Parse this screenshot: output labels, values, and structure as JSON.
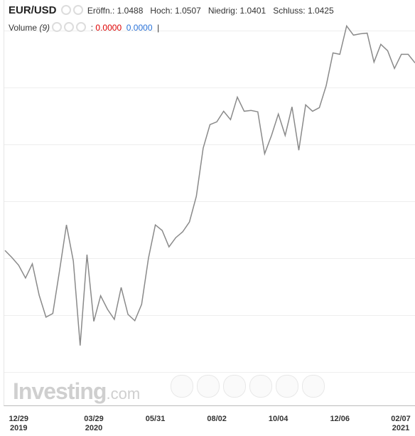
{
  "header": {
    "symbol": "EUR/USD",
    "open_label": "Eröffn.:",
    "open": "1.0488",
    "high_label": "Hoch:",
    "high": "1.0507",
    "low_label": "Niedrig:",
    "low": "1.0401",
    "close_label": "Schluss:",
    "close": "1.0425",
    "volume_label": "Volume",
    "volume_period": "(9)",
    "volume_sep": ":",
    "volume_value_1": "0.0000",
    "volume_value_2": "0.0000",
    "volume_cursor": "|"
  },
  "logo": {
    "name": "Investing",
    "suffix": ".com"
  },
  "chart_data": {
    "type": "line",
    "categories": [
      null,
      null,
      "12/29",
      null,
      null,
      null,
      null,
      null,
      null,
      null,
      null,
      null,
      null,
      "03/29",
      null,
      null,
      null,
      null,
      null,
      null,
      null,
      null,
      "05/31",
      null,
      null,
      null,
      null,
      null,
      null,
      null,
      null,
      "08/02",
      null,
      null,
      null,
      null,
      null,
      null,
      null,
      null,
      "10/04",
      null,
      null,
      null,
      null,
      null,
      null,
      null,
      null,
      "12/06",
      null,
      null,
      null,
      null,
      null,
      null,
      null,
      null,
      "02/07",
      null,
      null
    ],
    "years": [
      null,
      null,
      "2019",
      null,
      null,
      null,
      null,
      null,
      null,
      null,
      null,
      null,
      null,
      "2020",
      null,
      null,
      null,
      null,
      null,
      null,
      null,
      null,
      null,
      null,
      null,
      null,
      null,
      null,
      null,
      null,
      null,
      null,
      null,
      null,
      null,
      null,
      null,
      null,
      null,
      null,
      null,
      null,
      null,
      null,
      null,
      null,
      null,
      null,
      null,
      null,
      null,
      null,
      null,
      null,
      null,
      null,
      null,
      null,
      "2021",
      null,
      null
    ],
    "values": [
      1.1176,
      1.1141,
      1.1102,
      1.1038,
      1.1109,
      1.0952,
      1.0842,
      1.086,
      1.1077,
      1.1304,
      1.1123,
      1.07,
      1.1155,
      1.0821,
      1.0949,
      1.0881,
      1.0831,
      1.0991,
      1.0856,
      1.0824,
      1.0906,
      1.1137,
      1.1304,
      1.1276,
      1.1194,
      1.124,
      1.1269,
      1.1319,
      1.1447,
      1.1688,
      1.1806,
      1.182,
      1.1873,
      1.1831,
      1.1944,
      1.1873,
      1.1877,
      1.187,
      1.166,
      1.1752,
      1.1859,
      1.1752,
      1.1895,
      1.1678,
      1.1905,
      1.1873,
      1.1891,
      1.2001,
      1.2165,
      1.2158,
      1.23,
      1.2254,
      1.2261,
      1.2264,
      1.2119,
      1.2208,
      1.2176,
      1.2087,
      1.2158,
      1.2158,
      1.2115
    ],
    "color": "#8a8a8a",
    "ylim": [
      1.04,
      1.243
    ]
  }
}
